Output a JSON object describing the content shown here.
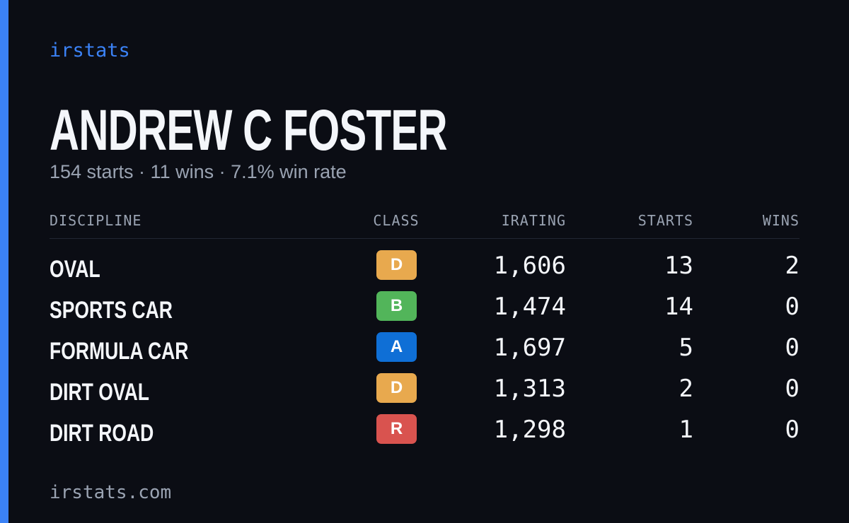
{
  "header": {
    "brand": "irstats",
    "name": "ANDREW C FOSTER",
    "summary": "154 starts · 11 wins · 7.1% win rate"
  },
  "table": {
    "columns": [
      "DISCIPLINE",
      "CLASS",
      "IRATING",
      "STARTS",
      "WINS"
    ],
    "rows": [
      [
        "OVAL",
        "D",
        "1,606",
        "13",
        "2"
      ],
      [
        "SPORTS CAR",
        "B",
        "1,474",
        "14",
        "0"
      ],
      [
        "FORMULA CAR",
        "A",
        "1,697",
        "5",
        "0"
      ],
      [
        "DIRT OVAL",
        "D",
        "1,313",
        "2",
        "0"
      ],
      [
        "DIRT ROAD",
        "R",
        "1,298",
        "1",
        "0"
      ]
    ]
  },
  "footer": {
    "site": "irstats.com"
  }
}
